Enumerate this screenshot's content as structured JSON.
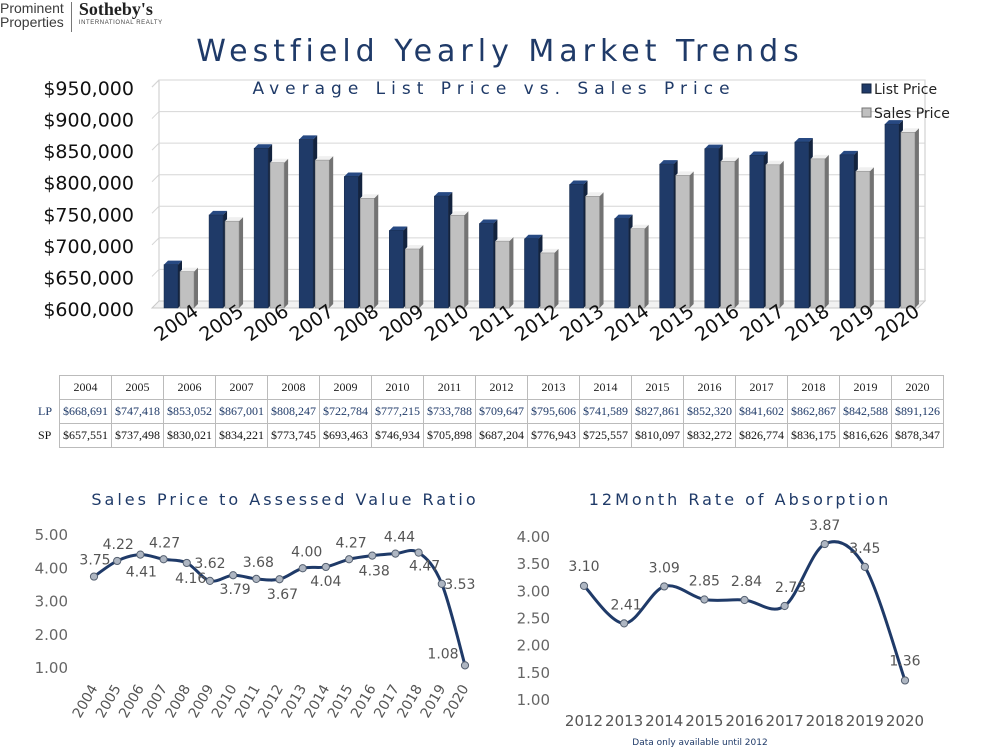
{
  "brand": {
    "left_line1": "Prominent",
    "left_line2": "Properties",
    "name": "Sotheby's",
    "sub": "INTERNATIONAL REALTY"
  },
  "page_title": "Westfield Yearly Market Trends",
  "colors": {
    "navy": "#1f3a68",
    "gray_bar": "#c0c0c0",
    "line": "#1f3a68",
    "marker": "#aeb6c2"
  },
  "table": {
    "years": [
      "2004",
      "2005",
      "2006",
      "2007",
      "2008",
      "2009",
      "2010",
      "2011",
      "2012",
      "2013",
      "2014",
      "2015",
      "2016",
      "2017",
      "2018",
      "2019",
      "2020"
    ],
    "lp_label": "LP",
    "sp_label": "SP",
    "lp": [
      "$668,691",
      "$747,418",
      "$853,052",
      "$867,001",
      "$808,247",
      "$722,784",
      "$777,215",
      "$733,788",
      "$709,647",
      "$795,606",
      "$741,589",
      "$827,861",
      "$852,320",
      "$841,602",
      "$862,867",
      "$842,588",
      "$891,126"
    ],
    "sp": [
      "$657,551",
      "$737,498",
      "$830,021",
      "$834,221",
      "$773,745",
      "$693,463",
      "$746,934",
      "$705,898",
      "$687,204",
      "$776,943",
      "$725,557",
      "$810,097",
      "$832,272",
      "$826,774",
      "$836,175",
      "$816,626",
      "$878,347"
    ]
  },
  "chart_data": [
    {
      "type": "bar",
      "title": "Average List Price vs. Sales Price",
      "categories": [
        "2004",
        "2005",
        "2006",
        "2007",
        "2008",
        "2009",
        "2010",
        "2011",
        "2012",
        "2013",
        "2014",
        "2015",
        "2016",
        "2017",
        "2018",
        "2019",
        "2020"
      ],
      "series": [
        {
          "name": "List Price",
          "color": "#1f3a68",
          "values": [
            668691,
            747418,
            853052,
            867001,
            808247,
            722784,
            777215,
            733788,
            709647,
            795606,
            741589,
            827861,
            852320,
            841602,
            862867,
            842588,
            891126
          ]
        },
        {
          "name": "Sales Price",
          "color": "#c0c0c0",
          "values": [
            657551,
            737498,
            830021,
            834221,
            773745,
            693463,
            746934,
            705898,
            687204,
            776943,
            725557,
            810097,
            832272,
            826774,
            836175,
            816626,
            878347
          ]
        }
      ],
      "ylim": [
        600000,
        950000
      ],
      "yticks": [
        "$600,000",
        "$650,000",
        "$700,000",
        "$750,000",
        "$800,000",
        "$850,000",
        "$900,000",
        "$950,000"
      ],
      "ytick_values": [
        600000,
        650000,
        700000,
        750000,
        800000,
        850000,
        900000,
        950000
      ],
      "legend": "top-right",
      "grid": true
    },
    {
      "type": "line",
      "title": "Sales Price to Assessed Value Ratio",
      "x": [
        "2004",
        "2005",
        "2006",
        "2007",
        "2008",
        "2009",
        "2010",
        "2011",
        "2012",
        "2013",
        "2014",
        "2015",
        "2016",
        "2017",
        "2018",
        "2019",
        "2020"
      ],
      "series": [
        {
          "values": [
            3.75,
            4.22,
            4.41,
            4.27,
            4.16,
            3.62,
            3.79,
            3.68,
            3.67,
            4.0,
            4.04,
            4.27,
            4.38,
            4.44,
            4.47,
            3.53,
            1.08
          ]
        }
      ],
      "labels": [
        "3.75",
        "4.22",
        "4.41",
        "4.27",
        "4.16",
        "3.62",
        "3.79",
        "3.68",
        "3.67",
        "4.00",
        "4.04",
        "4.27",
        "4.38",
        "4.44",
        "4.47",
        "3.53",
        "1.08"
      ],
      "ylim": [
        1.0,
        5.0
      ],
      "yticks": [
        "1.00",
        "2.00",
        "3.00",
        "4.00",
        "5.00"
      ],
      "ytick_values": [
        1,
        2,
        3,
        4,
        5
      ],
      "grid": false
    },
    {
      "type": "line",
      "title": "12Month Rate of Absorption",
      "x": [
        "2012",
        "2013",
        "2014",
        "2015",
        "2016",
        "2017",
        "2018",
        "2019",
        "2020"
      ],
      "series": [
        {
          "values": [
            3.1,
            2.41,
            3.09,
            2.85,
            2.84,
            2.73,
            3.87,
            3.45,
            1.36
          ]
        }
      ],
      "labels": [
        "3.10",
        "2.41",
        "3.09",
        "2.85",
        "2.84",
        "2.73",
        "3.87",
        "3.45",
        "1.36"
      ],
      "ylim": [
        1.0,
        4.0
      ],
      "yticks": [
        "1.00",
        "1.50",
        "2.00",
        "2.50",
        "3.00",
        "3.50",
        "4.00"
      ],
      "ytick_values": [
        1.0,
        1.5,
        2.0,
        2.5,
        3.0,
        3.5,
        4.0
      ],
      "note": "Data only available until 2012",
      "grid": false
    }
  ]
}
